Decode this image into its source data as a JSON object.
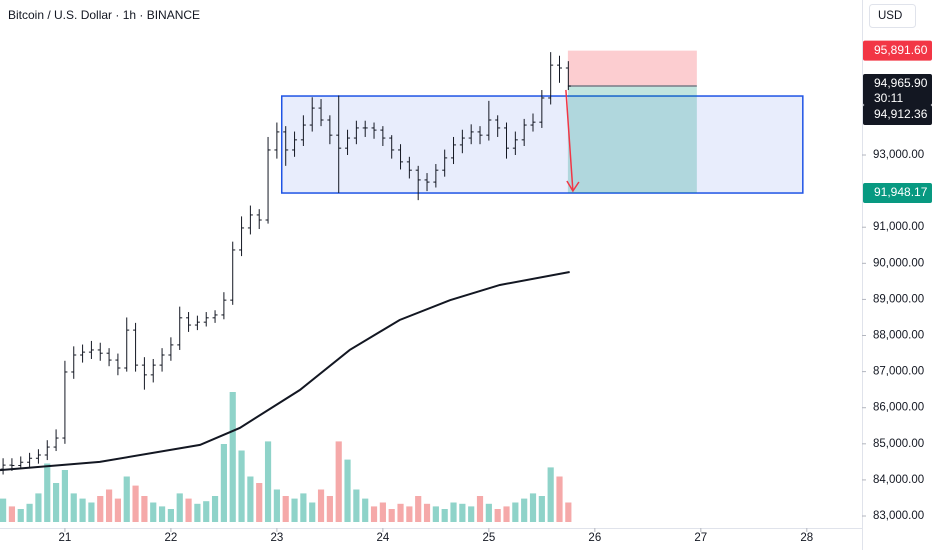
{
  "chart_data": {
    "type": "ohlc",
    "title": "Bitcoin / U.S. Dollar · 1h · BINANCE",
    "currency": "USD",
    "bar_color": "#131722",
    "volume_up_color": "#8fd3c9",
    "volume_down_color": "#f5a9a9",
    "x": [
      10,
      12,
      14,
      16,
      18,
      20,
      22,
      24,
      26,
      28,
      30,
      32,
      34,
      36,
      38,
      40,
      42,
      44,
      46,
      48,
      50,
      52,
      54,
      56,
      58,
      60,
      62,
      64,
      66,
      68,
      70,
      72,
      74,
      76,
      78,
      80,
      82,
      84,
      86,
      88,
      90,
      92,
      94,
      96,
      98,
      100,
      102,
      104,
      106,
      108,
      110,
      112,
      114,
      116,
      118,
      120,
      122,
      124,
      126,
      128,
      130,
      132,
      134,
      136,
      138
    ],
    "bars": [
      [
        84300,
        84600,
        84150,
        84410
      ],
      [
        84410,
        84600,
        84250,
        84400
      ],
      [
        84400,
        84650,
        84300,
        84490
      ],
      [
        84490,
        84750,
        84350,
        84600
      ],
      [
        84600,
        84850,
        84450,
        84690
      ],
      [
        84690,
        85100,
        84550,
        84910
      ],
      [
        84910,
        85400,
        84800,
        85160
      ],
      [
        85160,
        87300,
        85000,
        86990
      ],
      [
        86990,
        87700,
        86800,
        87460
      ],
      [
        87460,
        87750,
        87250,
        87540
      ],
      [
        87540,
        87850,
        87350,
        87600
      ],
      [
        87600,
        87800,
        87300,
        87510
      ],
      [
        87510,
        87650,
        87150,
        87320
      ],
      [
        87320,
        87500,
        86900,
        87100
      ],
      [
        87100,
        88500,
        87000,
        88150
      ],
      [
        88150,
        88350,
        87000,
        87180
      ],
      [
        87180,
        87400,
        86500,
        86910
      ],
      [
        86910,
        87350,
        86700,
        87180
      ],
      [
        87180,
        87650,
        87000,
        87460
      ],
      [
        87460,
        87950,
        87300,
        87740
      ],
      [
        87740,
        88800,
        87600,
        88490
      ],
      [
        88490,
        88650,
        88100,
        88290
      ],
      [
        88290,
        88550,
        88150,
        88370
      ],
      [
        88370,
        88650,
        88250,
        88490
      ],
      [
        88490,
        88700,
        88350,
        88570
      ],
      [
        88570,
        89200,
        88450,
        88980
      ],
      [
        88980,
        90600,
        88850,
        90370
      ],
      [
        90370,
        91300,
        90200,
        90980
      ],
      [
        90980,
        91600,
        90800,
        91340
      ],
      [
        91340,
        91500,
        90950,
        91200
      ],
      [
        91200,
        93500,
        91100,
        93140
      ],
      [
        93140,
        93900,
        92900,
        93640
      ],
      [
        93640,
        93800,
        92700,
        93140
      ],
      [
        93140,
        93650,
        92950,
        93420
      ],
      [
        93420,
        94100,
        93250,
        93830
      ],
      [
        93830,
        94600,
        93650,
        94300
      ],
      [
        94300,
        94550,
        93800,
        93970
      ],
      [
        93970,
        94100,
        93300,
        93550
      ],
      [
        93550,
        94650,
        91950,
        93190
      ],
      [
        93190,
        93700,
        93000,
        93470
      ],
      [
        93470,
        93950,
        93300,
        93750
      ],
      [
        93750,
        93950,
        93500,
        93750
      ],
      [
        93750,
        93900,
        93450,
        93690
      ],
      [
        93690,
        93800,
        93250,
        93470
      ],
      [
        93470,
        93550,
        92900,
        93140
      ],
      [
        93140,
        93300,
        92600,
        92810
      ],
      [
        92810,
        92950,
        92350,
        92580
      ],
      [
        92580,
        92700,
        91750,
        92310
      ],
      [
        92310,
        92500,
        92000,
        92250
      ],
      [
        92250,
        92750,
        92100,
        92580
      ],
      [
        92580,
        93150,
        92400,
        92920
      ],
      [
        92920,
        93500,
        92750,
        93280
      ],
      [
        93280,
        93700,
        93050,
        93470
      ],
      [
        93470,
        93850,
        93300,
        93640
      ],
      [
        93640,
        93800,
        93300,
        93550
      ],
      [
        93550,
        94500,
        93400,
        93970
      ],
      [
        93970,
        94100,
        93500,
        93750
      ],
      [
        93750,
        93900,
        92900,
        93190
      ],
      [
        93190,
        93650,
        93000,
        93420
      ],
      [
        93420,
        94000,
        93250,
        93830
      ],
      [
        93830,
        94150,
        93650,
        93910
      ],
      [
        93910,
        94800,
        93750,
        94580
      ],
      [
        94580,
        95850,
        94400,
        95490
      ],
      [
        95490,
        95750,
        95000,
        95410
      ],
      [
        95410,
        95600,
        94800,
        94910
      ]
    ],
    "volumes": [
      18,
      12,
      10,
      14,
      22,
      45,
      30,
      40,
      22,
      18,
      15,
      20,
      25,
      18,
      35,
      28,
      20,
      15,
      12,
      10,
      22,
      18,
      14,
      16,
      20,
      60,
      100,
      55,
      35,
      30,
      62,
      25,
      20,
      18,
      22,
      15,
      25,
      20,
      62,
      48,
      25,
      18,
      12,
      15,
      10,
      14,
      12,
      20,
      14,
      12,
      10,
      15,
      14,
      12,
      20,
      14,
      10,
      12,
      15,
      18,
      22,
      20,
      42,
      35,
      15
    ],
    "moving_average": {
      "color": "#131722",
      "x": [
        9.3,
        31.9,
        54.6,
        63.6,
        77.2,
        88.5,
        99.8,
        111.2,
        122.5,
        138.3
      ],
      "values": [
        84270,
        84500,
        84970,
        85440,
        86490,
        87600,
        88430,
        88980,
        89400,
        89760
      ]
    },
    "range_box": {
      "color": "#1e53e5",
      "x": [
        73.1,
        191.1
      ],
      "y": [
        91947,
        94634
      ]
    },
    "position": {
      "x": [
        137.9,
        167.1
      ],
      "stop": {
        "value": 95891.6,
        "label": "95,891.60",
        "color": "#f23645"
      },
      "entry": {
        "value": 94912.36,
        "label": "94,912.36",
        "color": "#131722"
      },
      "target": {
        "value": 91948.17,
        "label": "91,948.17",
        "color": "#089981"
      }
    },
    "last_price": {
      "value": 94965.9,
      "label": "94,965.90",
      "countdown": "30:11",
      "color": "#131722"
    },
    "xlim": [
      9.3,
      204.5
    ],
    "ylim": [
      82668,
      97294
    ],
    "xticks": [
      {
        "value": 24,
        "label": "21"
      },
      {
        "value": 48,
        "label": "22"
      },
      {
        "value": 72,
        "label": "23"
      },
      {
        "value": 96,
        "label": "24"
      },
      {
        "value": 120,
        "label": "25"
      },
      {
        "value": 144,
        "label": "26"
      },
      {
        "value": 168,
        "label": "27"
      },
      {
        "value": 192,
        "label": "28"
      }
    ],
    "yticks": [
      {
        "value": 83000,
        "label": "83,000.00"
      },
      {
        "value": 84000,
        "label": "84,000.00"
      },
      {
        "value": 85000,
        "label": "85,000.00"
      },
      {
        "value": 86000,
        "label": "86,000.00"
      },
      {
        "value": 87000,
        "label": "87,000.00"
      },
      {
        "value": 88000,
        "label": "88,000.00"
      },
      {
        "value": 89000,
        "label": "89,000.00"
      },
      {
        "value": 90000,
        "label": "90,000.00"
      },
      {
        "value": 91000,
        "label": "91,000.00"
      },
      {
        "value": 93000,
        "label": "93,000.00"
      }
    ]
  }
}
